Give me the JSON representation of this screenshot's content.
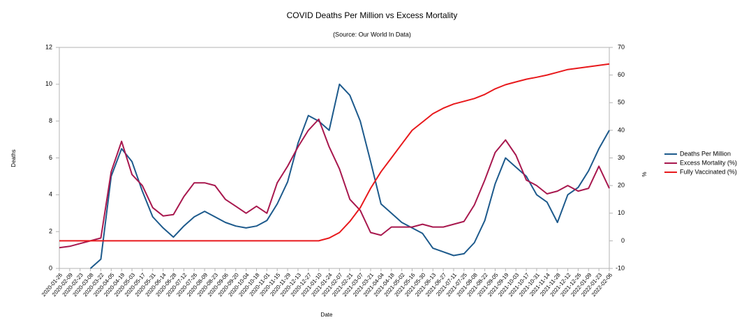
{
  "chart_data": {
    "type": "line",
    "title": "COVID Deaths Per Million vs Excess Mortality",
    "subtitle": "(Source: Our World In Data)",
    "x_label": "Date",
    "y_label": "Deaths",
    "y2_label": "%",
    "categories": [
      "2020-01-26",
      "2020-02-09",
      "2020-02-23",
      "2020-03-08",
      "2020-03-22",
      "2020-04-05",
      "2020-04-19",
      "2020-05-03",
      "2020-05-17",
      "2020-05-31",
      "2020-06-14",
      "2020-06-28",
      "2020-07-12",
      "2020-07-26",
      "2020-08-09",
      "2020-08-23",
      "2020-09-06",
      "2020-09-20",
      "2020-10-04",
      "2020-10-18",
      "2020-11-01",
      "2020-11-15",
      "2020-11-29",
      "2020-12-13",
      "2020-12-27",
      "2021-01-10",
      "2021-01-24",
      "2021-02-07",
      "2021-02-21",
      "2021-03-07",
      "2021-03-21",
      "2021-04-04",
      "2021-04-18",
      "2021-05-02",
      "2021-05-16",
      "2021-05-30",
      "2021-06-13",
      "2021-06-27",
      "2021-07-11",
      "2021-07-25",
      "2021-08-08",
      "2021-08-22",
      "2021-09-05",
      "2021-09-19",
      "2021-10-03",
      "2021-10-17",
      "2021-10-31",
      "2021-11-14",
      "2021-11-28",
      "2021-12-12",
      "2021-12-26",
      "2022-01-09",
      "2022-01-23",
      "2022-02-06"
    ],
    "series": [
      {
        "name": "Deaths Per Million",
        "color": "#1d5a8c",
        "axis": "y",
        "values": [
          null,
          null,
          null,
          0,
          0.5,
          5.0,
          6.5,
          5.8,
          4.2,
          2.8,
          2.2,
          1.7,
          2.3,
          2.8,
          3.1,
          2.8,
          2.5,
          2.3,
          2.2,
          2.3,
          2.6,
          3.5,
          4.7,
          6.8,
          8.3,
          8.0,
          7.5,
          10.0,
          9.4,
          8.0,
          5.8,
          3.5,
          3.0,
          2.5,
          2.2,
          1.9,
          1.1,
          0.9,
          0.7,
          0.8,
          1.4,
          2.6,
          4.6,
          6.0,
          5.5,
          5.0,
          4.0,
          3.6,
          2.5,
          4.0,
          4.4,
          5.3,
          6.5,
          7.5
        ]
      },
      {
        "name": "Excess Mortality (%)",
        "color": "#a8184e",
        "axis": "y2",
        "values": [
          -2.5,
          -2,
          -1,
          0,
          1,
          25,
          36,
          24,
          20,
          12,
          9,
          9.5,
          16,
          21,
          21,
          20,
          15,
          12.5,
          10,
          12.5,
          10,
          21,
          27,
          34,
          40,
          44,
          34,
          26,
          15,
          11,
          3,
          2,
          5,
          5,
          5,
          6,
          5,
          5,
          6,
          7,
          13,
          22,
          32,
          36.5,
          31,
          22,
          20,
          17,
          18,
          20,
          18,
          19,
          27,
          19
        ]
      },
      {
        "name": "Fully Vaccinated (%)",
        "color": "#e8191c",
        "axis": "y2",
        "values": [
          0,
          0,
          0,
          0,
          0,
          0,
          0,
          0,
          0,
          0,
          0,
          0,
          0,
          0,
          0,
          0,
          0,
          0,
          0,
          0,
          0,
          0,
          0,
          0,
          0,
          0,
          1,
          3,
          7,
          12,
          19,
          25,
          30,
          35,
          40,
          43,
          46,
          48,
          49.5,
          50.5,
          51.5,
          53,
          55,
          56.5,
          57.5,
          58.5,
          59.2,
          60,
          61,
          62,
          62.5,
          63,
          63.5,
          64
        ]
      }
    ],
    "ylim": [
      0,
      12
    ],
    "yticks": [
      0,
      2,
      4,
      6,
      8,
      10,
      12
    ],
    "y2lim": [
      -10,
      70
    ],
    "y2ticks": [
      -10,
      0,
      10,
      20,
      30,
      40,
      50,
      60,
      70
    ],
    "grid": false,
    "legend": "right"
  }
}
